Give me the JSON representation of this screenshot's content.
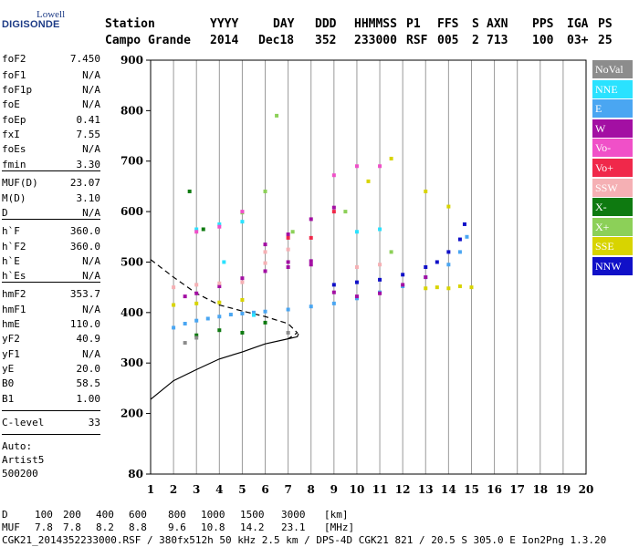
{
  "logo": {
    "top": "Lowell",
    "bottom": "DIGISONDE"
  },
  "header": {
    "row1": [
      "Station",
      "YYYY",
      "DAY",
      "DDD",
      "HHMMSS",
      "P1",
      "FFS",
      "S",
      "AXN",
      "PPS",
      "IGA",
      "PS"
    ],
    "row2": [
      "Campo Grande",
      "2014",
      "Dec18",
      "352",
      "233000",
      "RSF",
      "005",
      "2",
      "713",
      "100",
      "03+",
      "25"
    ]
  },
  "params": [
    {
      "label": "foF2",
      "value": "7.450"
    },
    {
      "label": "foF1",
      "value": "N/A"
    },
    {
      "label": "foF1p",
      "value": "N/A"
    },
    {
      "label": "foE",
      "value": "N/A"
    },
    {
      "label": "foEp",
      "value": "0.41"
    },
    {
      "label": "fxI",
      "value": "7.55"
    },
    {
      "label": "foEs",
      "value": "N/A"
    },
    {
      "label": "fmin",
      "value": "3.30"
    },
    {
      "label": "MUF(D)",
      "value": "23.07"
    },
    {
      "label": "M(D)",
      "value": "3.10"
    },
    {
      "label": "D",
      "value": "N/A"
    },
    {
      "label": "h`F",
      "value": "360.0"
    },
    {
      "label": "h`F2",
      "value": "360.0"
    },
    {
      "label": "h`E",
      "value": "N/A"
    },
    {
      "label": "h`Es",
      "value": "N/A"
    },
    {
      "label": "hmF2",
      "value": "353.7"
    },
    {
      "label": "hmF1",
      "value": "N/A"
    },
    {
      "label": "hmE",
      "value": "110.0"
    },
    {
      "label": "yF2",
      "value": "40.9"
    },
    {
      "label": "yF1",
      "value": "N/A"
    },
    {
      "label": "yE",
      "value": "20.0"
    },
    {
      "label": "B0",
      "value": "58.5"
    },
    {
      "label": "B1",
      "value": "1.00"
    },
    {
      "label": "C-level",
      "value": "33"
    }
  ],
  "autoscale": [
    "Auto:",
    "Artist5",
    "500200"
  ],
  "legend": [
    {
      "label": "NoVal",
      "color": "#8c8c8c"
    },
    {
      "label": "NNE",
      "color": "#2ae2ff"
    },
    {
      "label": "E",
      "color": "#4aa6f2"
    },
    {
      "label": "W",
      "color": "#a30fa3"
    },
    {
      "label": "Vo-",
      "color": "#f050c8"
    },
    {
      "label": "Vo+",
      "color": "#f0284a"
    },
    {
      "label": "SSW",
      "color": "#f5b0b4"
    },
    {
      "label": "X-",
      "color": "#0e7a10"
    },
    {
      "label": "X+",
      "color": "#8cd058"
    },
    {
      "label": "SSE",
      "color": "#d8d400"
    },
    {
      "label": "NNW",
      "color": "#1010c8"
    }
  ],
  "footer": {
    "d_label": "D",
    "d_values": [
      "100",
      "200",
      "400",
      "600",
      "800",
      "1000",
      "1500",
      "3000",
      "[km]"
    ],
    "muf_label": "MUF",
    "muf_values": [
      "7.8",
      "7.8",
      "8.2",
      "8.8",
      "9.6",
      "10.8",
      "14.2",
      "23.1",
      "[MHz]"
    ],
    "info": "CGK21_2014352233000.RSF / 380fx512h 50 kHz 2.5 km / DPS-4D CGK21 821 / 20.5 S 305.0 E Ion2Png 1.3.20"
  },
  "chart_data": {
    "type": "scatter",
    "title": "",
    "xlabel": "",
    "ylabel": "",
    "xlim": [
      1,
      20
    ],
    "ylim": [
      80,
      900
    ],
    "xticks": [
      1,
      2,
      3,
      4,
      5,
      6,
      7,
      8,
      9,
      10,
      11,
      12,
      13,
      14,
      15,
      16,
      17,
      18,
      19,
      20
    ],
    "yticks": [
      80,
      200,
      300,
      400,
      500,
      600,
      700,
      800,
      900
    ],
    "grid": "vertical",
    "legend_position": "right",
    "series": [
      {
        "name": "E",
        "color": "#4aa6f2",
        "points": [
          [
            2,
            370
          ],
          [
            2.5,
            378
          ],
          [
            3,
            384
          ],
          [
            3.5,
            388
          ],
          [
            4,
            392
          ],
          [
            4.5,
            396
          ],
          [
            5,
            398
          ],
          [
            5.5,
            400
          ],
          [
            6,
            402
          ],
          [
            7,
            406
          ],
          [
            8,
            412
          ],
          [
            9,
            418
          ],
          [
            10,
            428
          ],
          [
            11,
            440
          ],
          [
            12,
            452
          ],
          [
            13,
            470
          ],
          [
            14,
            495
          ],
          [
            14.5,
            520
          ],
          [
            14.8,
            550
          ]
        ]
      },
      {
        "name": "W",
        "color": "#a30fa3",
        "points": [
          [
            2.5,
            432
          ],
          [
            3,
            438
          ],
          [
            4,
            452
          ],
          [
            5,
            468
          ],
          [
            6,
            482
          ],
          [
            7,
            490
          ],
          [
            8,
            495
          ],
          [
            9,
            440
          ],
          [
            10,
            432
          ],
          [
            11,
            438
          ],
          [
            12,
            455
          ],
          [
            13,
            470
          ],
          [
            6,
            535
          ],
          [
            7,
            555
          ],
          [
            8,
            585
          ],
          [
            9,
            608
          ],
          [
            7,
            500
          ],
          [
            8,
            502
          ]
        ]
      },
      {
        "name": "NNW",
        "color": "#1010c8",
        "points": [
          [
            9,
            455
          ],
          [
            10,
            460
          ],
          [
            11,
            465
          ],
          [
            12,
            475
          ],
          [
            13,
            490
          ],
          [
            13.5,
            500
          ],
          [
            14,
            520
          ],
          [
            14.5,
            545
          ],
          [
            14.7,
            575
          ]
        ]
      },
      {
        "name": "SSE",
        "color": "#d8d400",
        "points": [
          [
            2,
            415
          ],
          [
            3,
            418
          ],
          [
            4,
            420
          ],
          [
            5,
            425
          ],
          [
            13,
            448
          ],
          [
            13.5,
            450
          ],
          [
            14,
            448
          ],
          [
            14.5,
            452
          ],
          [
            15,
            450
          ],
          [
            10.5,
            660
          ],
          [
            11.5,
            705
          ],
          [
            13,
            640
          ],
          [
            14,
            610
          ]
        ]
      },
      {
        "name": "SSW",
        "color": "#f5b0b4",
        "points": [
          [
            2,
            450
          ],
          [
            3,
            455
          ],
          [
            4,
            458
          ],
          [
            5,
            460
          ],
          [
            6,
            520
          ],
          [
            7,
            525
          ],
          [
            6,
            498
          ],
          [
            10,
            490
          ],
          [
            11,
            495
          ]
        ]
      },
      {
        "name": "NNE",
        "color": "#2ae2ff",
        "points": [
          [
            3,
            565
          ],
          [
            4,
            575
          ],
          [
            5,
            580
          ],
          [
            10,
            560
          ],
          [
            11,
            565
          ],
          [
            4.2,
            500
          ],
          [
            5.5,
            395
          ]
        ]
      },
      {
        "name": "X-",
        "color": "#0e7a10",
        "points": [
          [
            3,
            355
          ],
          [
            4,
            365
          ],
          [
            5,
            360
          ],
          [
            6,
            380
          ],
          [
            3.3,
            565
          ],
          [
            2.7,
            640
          ]
        ]
      },
      {
        "name": "X+",
        "color": "#8cd058",
        "points": [
          [
            5,
            598
          ],
          [
            6,
            640
          ],
          [
            6.5,
            790
          ],
          [
            7.2,
            560
          ],
          [
            9.5,
            600
          ],
          [
            11.5,
            520
          ]
        ]
      },
      {
        "name": "Vo-",
        "color": "#f050c8",
        "points": [
          [
            3,
            560
          ],
          [
            4,
            570
          ],
          [
            5,
            600
          ],
          [
            9,
            672
          ],
          [
            10,
            690
          ],
          [
            11,
            690
          ]
        ]
      },
      {
        "name": "Vo+",
        "color": "#f0284a",
        "points": [
          [
            7,
            548
          ],
          [
            8,
            548
          ],
          [
            9,
            600
          ]
        ]
      },
      {
        "name": "NoVal",
        "color": "#8c8c8c",
        "points": [
          [
            2.5,
            340
          ],
          [
            3,
            350
          ],
          [
            7,
            360
          ]
        ]
      }
    ],
    "profile_curve": [
      [
        1,
        228
      ],
      [
        2,
        265
      ],
      [
        3,
        287
      ],
      [
        4,
        308
      ],
      [
        5,
        322
      ],
      [
        6,
        338
      ],
      [
        7,
        348
      ],
      [
        7.4,
        352
      ],
      [
        7.45,
        358
      ]
    ],
    "dashed_curve": [
      [
        1,
        505
      ],
      [
        2,
        470
      ],
      [
        3,
        438
      ],
      [
        4,
        415
      ],
      [
        5,
        403
      ],
      [
        6,
        392
      ],
      [
        7,
        378
      ],
      [
        7.4,
        360
      ],
      [
        7,
        348
      ]
    ]
  }
}
